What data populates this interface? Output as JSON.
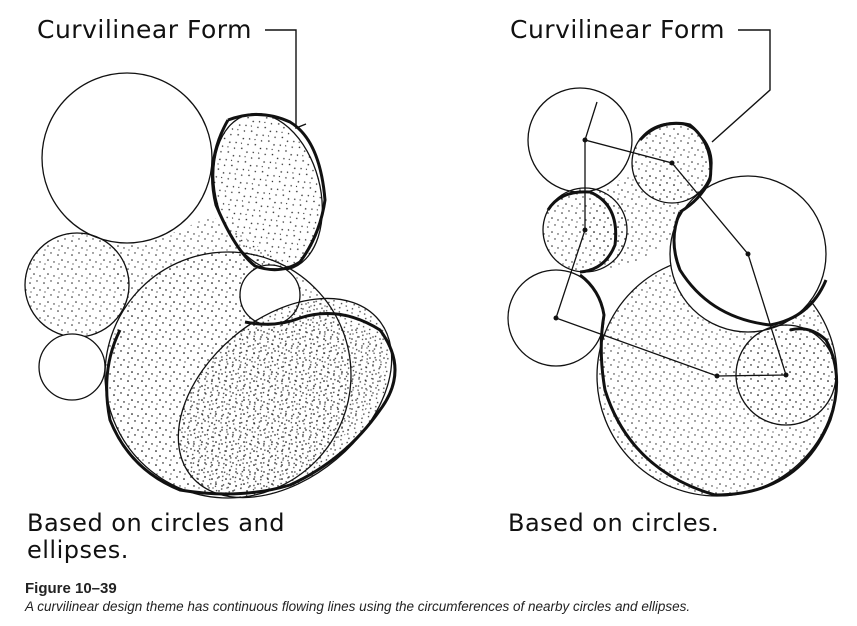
{
  "left_diagram": {
    "title_label": "Curvilinear Form",
    "note_line1": "Based on circles and",
    "note_line2": "ellipses."
  },
  "right_diagram": {
    "title_label": "Curvilinear Form",
    "note_line1": "Based on circles."
  },
  "caption": {
    "title": "Figure 10–39",
    "text": "A curvilinear design theme has continuous flowing lines using the circumferences of nearby circles and ellipses."
  },
  "colors": {
    "ink": "#111111",
    "stipple": "#222222",
    "background": "#ffffff"
  }
}
